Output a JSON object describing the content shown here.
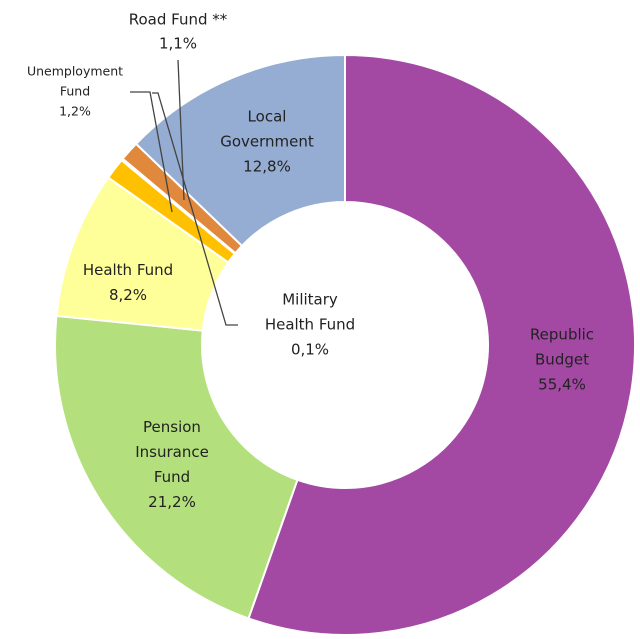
{
  "chart_data": {
    "type": "donut",
    "categories": [
      [
        "Republic",
        "Budget"
      ],
      [
        "Pension",
        "Insurance",
        "Fund"
      ],
      [
        "Health Fund"
      ],
      [
        "Unemployment",
        "Fund"
      ],
      [
        "Military",
        "Health Fund"
      ],
      [
        "Road Fund **"
      ],
      [
        "Local",
        "Government"
      ]
    ],
    "values": [
      55.4,
      21.2,
      8.2,
      1.2,
      0.1,
      1.1,
      12.8
    ],
    "value_labels": [
      "55,4%",
      "21,2%",
      "8,2%",
      "1,2%",
      "0,1%",
      "1,1%",
      "12,8%"
    ],
    "colors": [
      "#a349a4",
      "#b3e07c",
      "#ffff99",
      "#ffc000",
      "#7f7f7f",
      "#e0883c",
      "#95acd3"
    ]
  }
}
